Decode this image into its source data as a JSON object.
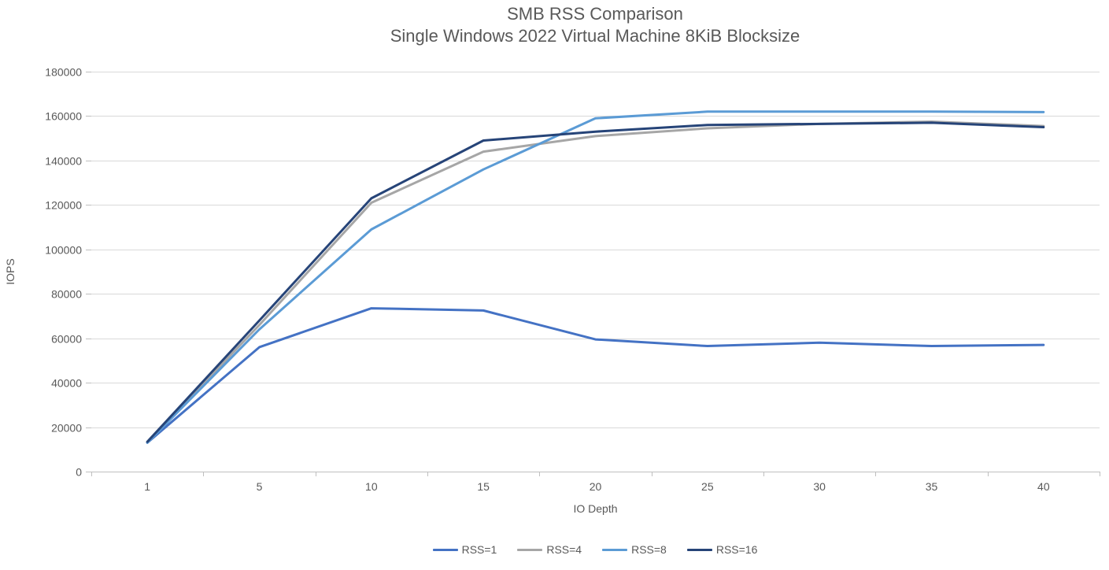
{
  "chart_data": {
    "type": "line",
    "title": "SMB RSS Comparison",
    "subtitle": "Single Windows 2022 Virtual Machine 8KiB Blocksize",
    "xlabel": "IO Depth",
    "ylabel": "IOPS",
    "categories": [
      "1",
      "5",
      "10",
      "15",
      "20",
      "25",
      "30",
      "35",
      "40"
    ],
    "ylim": [
      0,
      180000
    ],
    "ytick_step": 20000,
    "ytick_labels": [
      "0",
      "20000",
      "40000",
      "60000",
      "80000",
      "100000",
      "120000",
      "140000",
      "160000",
      "180000"
    ],
    "grid": true,
    "legend_position": "bottom",
    "series": [
      {
        "name": "RSS=1",
        "color": "#4472C4",
        "values": [
          13000,
          56000,
          73500,
          72500,
          59500,
          56500,
          58000,
          56500,
          57000
        ]
      },
      {
        "name": "RSS=4",
        "color": "#A6A6A6",
        "values": [
          13200,
          66000,
          121000,
          144000,
          151000,
          154500,
          156500,
          157500,
          155500
        ]
      },
      {
        "name": "RSS=8",
        "color": "#5B9BD5",
        "values": [
          13000,
          64000,
          109000,
          136000,
          159000,
          162000,
          162000,
          162000,
          161800
        ]
      },
      {
        "name": "RSS=16",
        "color": "#264478",
        "values": [
          13400,
          68000,
          123000,
          149000,
          153000,
          156000,
          156500,
          157000,
          155000
        ]
      }
    ],
    "colors": {
      "text": "#595959",
      "gridline": "#D9D9D9",
      "axis_line": "#BFBFBF",
      "background": "#FFFFFF"
    }
  }
}
